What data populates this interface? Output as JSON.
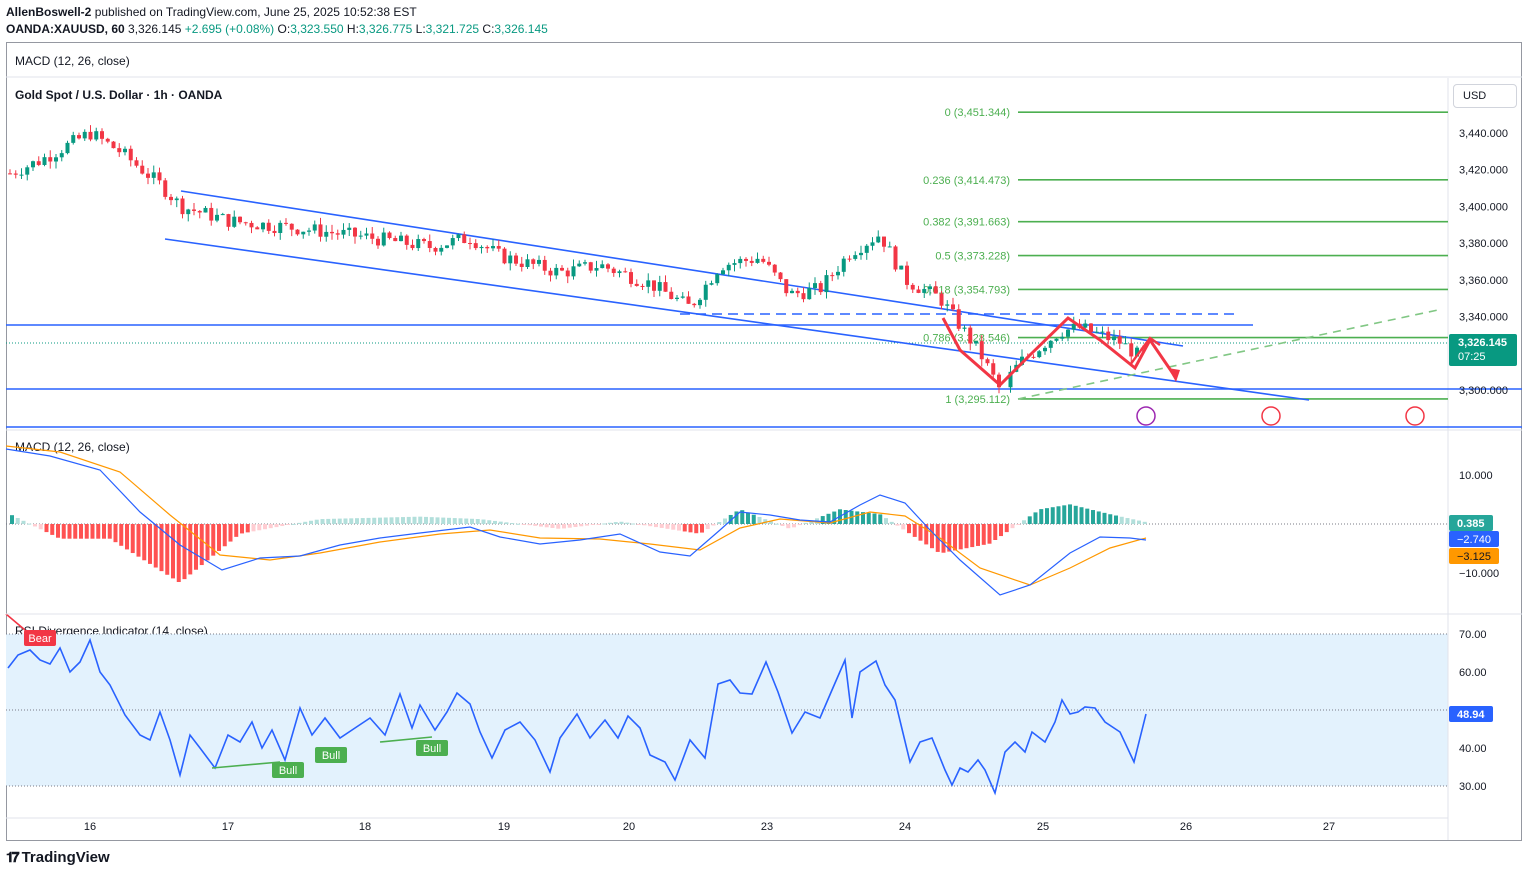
{
  "header": {
    "author": "AllenBoswell-2",
    "published": " published on TradingView.com, June 25, 2025 10:52:38 EST",
    "symbol": "OANDA:XAUUSD, 60",
    "price": "3,326.145",
    "change": "+2.695 (+0.08%)",
    "o_label": "O:",
    "o_val": "3,323.550",
    "h_label": "H:",
    "h_val": "3,326.775",
    "l_label": "L:",
    "l_val": "3,321.725",
    "c_label": "C:",
    "c_val": "3,326.145"
  },
  "panes": {
    "top_macd_label": "MACD (12, 26, close)",
    "main_title": "Gold Spot / U.S. Dollar · 1h · OANDA",
    "currency": "USD",
    "macd_label": "MACD (12, 26, close)",
    "rsi_label": "RSI Divergence Indicator (14, close)"
  },
  "price_axis": {
    "ticks": [
      "3,440.000",
      "3,420.000",
      "3,400.000",
      "3,380.000",
      "3,360.000",
      "3,340.000",
      "3,300.000"
    ],
    "last_price": "3,326.145",
    "countdown": "07:25"
  },
  "fib_levels": [
    {
      "label": "0 (3,451.344)",
      "price": 3451.344
    },
    {
      "label": "0.236 (3,414.473)",
      "price": 3414.473
    },
    {
      "label": "0.382 (3,391.663)",
      "price": 3391.663
    },
    {
      "label": "0.5 (3,373.228)",
      "price": 3373.228
    },
    {
      "label": "0.618 (3,354.793)",
      "price": 3354.793
    },
    {
      "label": "0.786 (3,328.546)",
      "price": 3328.546
    },
    {
      "label": "1 (3,295.112)",
      "price": 3295.112
    }
  ],
  "macd_axis": {
    "ticks": [
      "10.000",
      "−10.000"
    ],
    "histogram_value": "0.385",
    "macd_value": "−2.740",
    "signal_value": "−3.125"
  },
  "rsi_axis": {
    "ticks": [
      "70.00",
      "60.00",
      "40.00",
      "30.00"
    ],
    "current": "48.94"
  },
  "rsi_tags": [
    "Bear",
    "Bull",
    "Bull",
    "Bull"
  ],
  "time_axis": [
    "16",
    "17",
    "18",
    "19",
    "20",
    "23",
    "24",
    "25",
    "26",
    "27"
  ],
  "brand": "TradingView",
  "colors": {
    "up": "#089981",
    "down": "#f23645",
    "channel": "#2962ff",
    "fib": "#4caf50",
    "macd": "#2962ff",
    "signal": "#ff9800",
    "rsi_band": "#e3f2fd",
    "pattern": "#f23645"
  },
  "chart_data": {
    "type": "line",
    "title": "Gold Spot / U.S. Dollar · 1h · OANDA",
    "x": [
      "16",
      "17",
      "18",
      "19",
      "20",
      "23",
      "24",
      "25"
    ],
    "series": [
      {
        "values": [
          3420,
          3395,
          3385,
          3378,
          3365,
          3375,
          3350,
          3326
        ]
      }
    ],
    "ylim": [
      3285,
      3460
    ],
    "rsi_series": [
      {
        "values": [
          60,
          36,
          44,
          52,
          43,
          60,
          35,
          49
        ]
      }
    ],
    "macd_series": {
      "macd": [
        11,
        -7,
        -3,
        0,
        -6,
        0,
        -10,
        -2.74
      ],
      "signal": [
        11,
        -4,
        -2,
        -1,
        -3,
        0,
        -8,
        -3.125
      ]
    }
  }
}
